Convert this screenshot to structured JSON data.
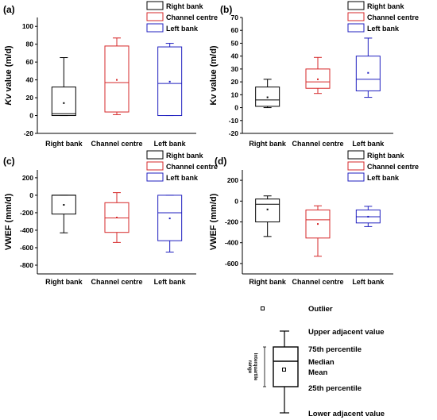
{
  "legend": [
    "Right bank",
    "Channel centre",
    "Left bank"
  ],
  "colors": {
    "Right bank": "#000000",
    "Channel centre": "#d62728",
    "Left bank": "#1f1fbf"
  },
  "chart_data": [
    {
      "panel": "(a)",
      "type": "box",
      "ylabel_prefix": "Kv",
      "ylabel_suffix": " value (m/d)",
      "ylim": [
        -20,
        110
      ],
      "yticks": [
        -20,
        0,
        20,
        40,
        60,
        80,
        100
      ],
      "ytick_labels": [
        "-20",
        "0",
        "20",
        "40",
        "60",
        "80",
        "100"
      ],
      "categories": [
        "Right bank",
        "Channel centre",
        "Left bank"
      ],
      "boxes": [
        {
          "name": "Right bank",
          "low": 0,
          "q1": 0,
          "median": 2,
          "q3": 32,
          "high": 65,
          "mean": 14
        },
        {
          "name": "Channel centre",
          "low": 1,
          "q1": 4,
          "median": 37,
          "q3": 78,
          "high": 87,
          "mean": 40
        },
        {
          "name": "Left bank",
          "low": 0,
          "q1": 0,
          "median": 36,
          "q3": 77,
          "high": 81,
          "mean": 38
        }
      ]
    },
    {
      "panel": "(b)",
      "type": "box",
      "ylabel_prefix": "",
      "ylabel_suffix": "Kv value (m/d)",
      "ylim": [
        -20,
        70
      ],
      "yticks": [
        -20,
        -10,
        0,
        10,
        20,
        30,
        40,
        50,
        60,
        70
      ],
      "ytick_labels": [
        "-20",
        "-10",
        "0",
        "10",
        "20",
        "30",
        "40",
        "50",
        "60",
        "70"
      ],
      "categories": [
        "Right bank",
        "Channel centre",
        "Left bank"
      ],
      "boxes": [
        {
          "name": "Right bank",
          "low": 0,
          "q1": 1,
          "median": 6,
          "q3": 16,
          "high": 22,
          "mean": 8
        },
        {
          "name": "Channel centre",
          "low": 11,
          "q1": 15,
          "median": 20,
          "q3": 30,
          "high": 39,
          "mean": 22
        },
        {
          "name": "Left bank",
          "low": 8,
          "q1": 13,
          "median": 22,
          "q3": 40,
          "high": 54,
          "mean": 27
        }
      ]
    },
    {
      "panel": "(c)",
      "type": "box",
      "ylabel_prefix": "",
      "ylabel_suffix": "VWEF (mm/d)",
      "ylim": [
        -900,
        290
      ],
      "yticks": [
        -800,
        -600,
        -400,
        -200,
        0,
        200
      ],
      "ytick_labels": [
        "-800",
        "-600",
        "-400",
        "-200",
        "0",
        "200"
      ],
      "categories": [
        "Right bank",
        "Channel centre",
        "Left bank"
      ],
      "boxes": [
        {
          "name": "Right bank",
          "low": -430,
          "q1": -215,
          "median": 0,
          "q3": 0,
          "high": 0,
          "mean": -110
        },
        {
          "name": "Channel centre",
          "low": -540,
          "q1": -425,
          "median": -260,
          "q3": -85,
          "high": 30,
          "mean": -255
        },
        {
          "name": "Left bank",
          "low": -650,
          "q1": -520,
          "median": -200,
          "q3": 0,
          "high": 0,
          "mean": -265
        }
      ]
    },
    {
      "panel": "(d)",
      "type": "box",
      "ylabel_prefix": "",
      "ylabel_suffix": "VWEF (mm/d)",
      "ylim": [
        -700,
        300
      ],
      "yticks": [
        -600,
        -400,
        -200,
        0,
        200
      ],
      "ytick_labels": [
        "-600",
        "-400",
        "-200",
        "0",
        "200"
      ],
      "categories": [
        "Right bank",
        "Channel centre",
        "Left bank"
      ],
      "boxes": [
        {
          "name": "Right bank",
          "low": -340,
          "q1": -200,
          "median": -30,
          "q3": 20,
          "high": 50,
          "mean": -80
        },
        {
          "name": "Channel centre",
          "low": -530,
          "q1": -355,
          "median": -180,
          "q3": -85,
          "high": -45,
          "mean": -220
        },
        {
          "name": "Left bank",
          "low": -245,
          "q1": -210,
          "median": -150,
          "q3": -85,
          "high": -50,
          "mean": -150
        }
      ]
    }
  ],
  "key": {
    "outlier": "Outlier",
    "upper": "Upper adjacent value",
    "p75": "75th percentile",
    "median": "Median",
    "mean": "Mean",
    "p25": "25th percentile",
    "lower": "Lower adjacent value",
    "range_line1": "Interquartile",
    "range_line2": "range"
  }
}
